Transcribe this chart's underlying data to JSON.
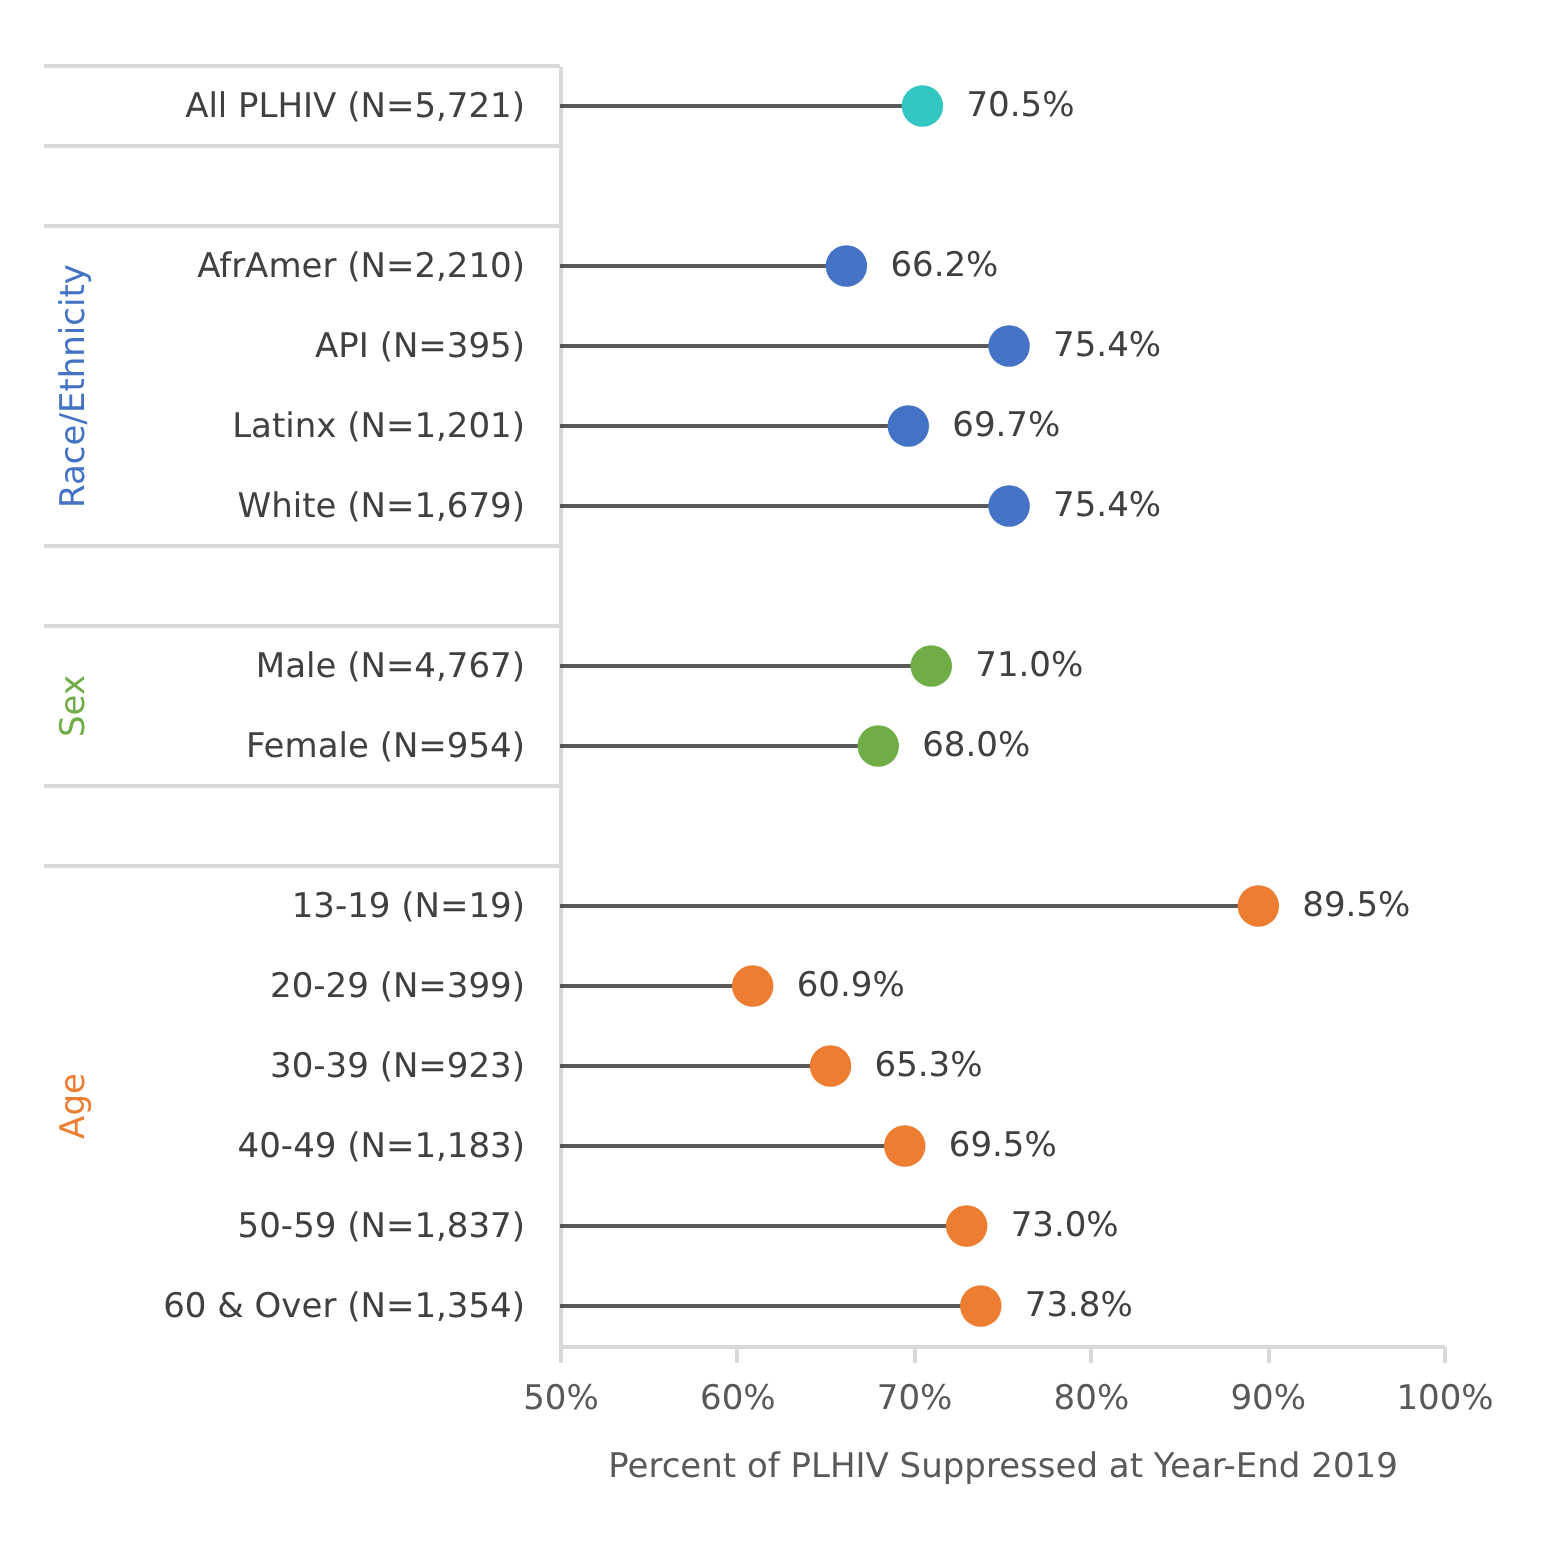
{
  "chart_data": {
    "type": "lollipop",
    "orientation": "horizontal",
    "xlabel": "Percent of PLHIV Suppressed at Year-End 2019",
    "categories": [
      "All PLHIV (N=5,721)",
      null,
      "AfrAmer (N=2,210)",
      "API (N=395)",
      "Latinx (N=1,201)",
      "White (N=1,679)",
      null,
      "Male (N=4,767)",
      "Female (N=954)",
      null,
      "13-19 (N=19)",
      "20-29 (N=399)",
      "30-39 (N=923)",
      "40-49 (N=1,183)",
      "50-59 (N=1,837)",
      "60 & Over (N=1,354)"
    ],
    "series": [
      {
        "color": "#31c6c2",
        "values": [
          70.5,
          null,
          null,
          null,
          null,
          null,
          null,
          null,
          null,
          null,
          null,
          null,
          null,
          null,
          null,
          null
        ],
        "value_labels": [
          "70.5%",
          null,
          null,
          null,
          null,
          null,
          null,
          null,
          null,
          null,
          null,
          null,
          null,
          null,
          null,
          null
        ]
      },
      {
        "name": "Race/Ethnicity",
        "color": "#4472c4",
        "values": [
          null,
          null,
          66.2,
          75.4,
          69.7,
          75.4,
          null,
          null,
          null,
          null,
          null,
          null,
          null,
          null,
          null,
          null
        ],
        "value_labels": [
          null,
          null,
          "66.2%",
          "75.4%",
          "69.7%",
          "75.4%",
          null,
          null,
          null,
          null,
          null,
          null,
          null,
          null,
          null,
          null
        ]
      },
      {
        "name": "Sex",
        "color": "#70ad47",
        "values": [
          null,
          null,
          null,
          null,
          null,
          null,
          null,
          71.0,
          68.0,
          null,
          null,
          null,
          null,
          null,
          null,
          null
        ],
        "value_labels": [
          null,
          null,
          null,
          null,
          null,
          null,
          null,
          "71.0%",
          "68.0%",
          null,
          null,
          null,
          null,
          null,
          null,
          null
        ]
      },
      {
        "name": "Age",
        "color": "#ed7d31",
        "values": [
          null,
          null,
          null,
          null,
          null,
          null,
          null,
          null,
          null,
          null,
          89.5,
          60.9,
          65.3,
          69.5,
          73.0,
          73.8
        ],
        "value_labels": [
          null,
          null,
          null,
          null,
          null,
          null,
          null,
          null,
          null,
          null,
          "89.5%",
          "60.9%",
          "65.3%",
          "69.5%",
          "73.0%",
          "73.8%"
        ]
      }
    ],
    "xlim": [
      50,
      100
    ],
    "xticks": [
      {
        "value": 50,
        "label": "50%"
      },
      {
        "value": 60,
        "label": "60%"
      },
      {
        "value": 70,
        "label": "70%"
      },
      {
        "value": 80,
        "label": "80%"
      },
      {
        "value": 90,
        "label": "90%"
      },
      {
        "value": 100,
        "label": "100%"
      }
    ],
    "grid": false,
    "legend": false,
    "marker": "circle"
  }
}
